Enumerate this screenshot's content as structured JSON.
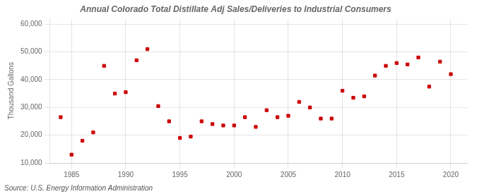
{
  "chart_data": {
    "type": "scatter",
    "title": "Annual Colorado Total Distillate Adj Sales/Deliveries to Industrial Consumers",
    "ylabel": "Thousand Gallons",
    "annotations": [
      "Source: U.S. Energy Information Administration"
    ],
    "x": [
      1984,
      1985,
      1986,
      1987,
      1988,
      1989,
      1990,
      1991,
      1992,
      1993,
      1994,
      1995,
      1996,
      1997,
      1998,
      1999,
      2000,
      2001,
      2002,
      2003,
      2004,
      2005,
      2006,
      2007,
      2008,
      2009,
      2010,
      2011,
      2012,
      2013,
      2014,
      2015,
      2016,
      2017,
      2018,
      2019,
      2020
    ],
    "values": [
      26500,
      13000,
      18000,
      21000,
      45000,
      35000,
      35500,
      47000,
      51000,
      30500,
      25000,
      19000,
      19500,
      25000,
      24000,
      23500,
      23500,
      26500,
      23000,
      29000,
      26500,
      27000,
      32000,
      30000,
      26000,
      26000,
      36000,
      33500,
      34000,
      41500,
      45000,
      46000,
      45500,
      48000,
      37500,
      46500,
      42000
    ],
    "color": "#cc0000",
    "marker": "square",
    "xlim": [
      1983,
      2021.5
    ],
    "xticks": [
      1985,
      1990,
      1995,
      2000,
      2005,
      2010,
      2015,
      2020
    ],
    "ylim": [
      10000,
      62000
    ],
    "yticks": [
      {
        "value": 10000,
        "label": "10,000"
      },
      {
        "value": 20000,
        "label": "20,000"
      },
      {
        "value": 30000,
        "label": "30,000"
      },
      {
        "value": 40000,
        "label": "40,000"
      },
      {
        "value": 50000,
        "label": "50,000"
      },
      {
        "value": 60000,
        "label": "60,000"
      }
    ],
    "grid": true
  }
}
